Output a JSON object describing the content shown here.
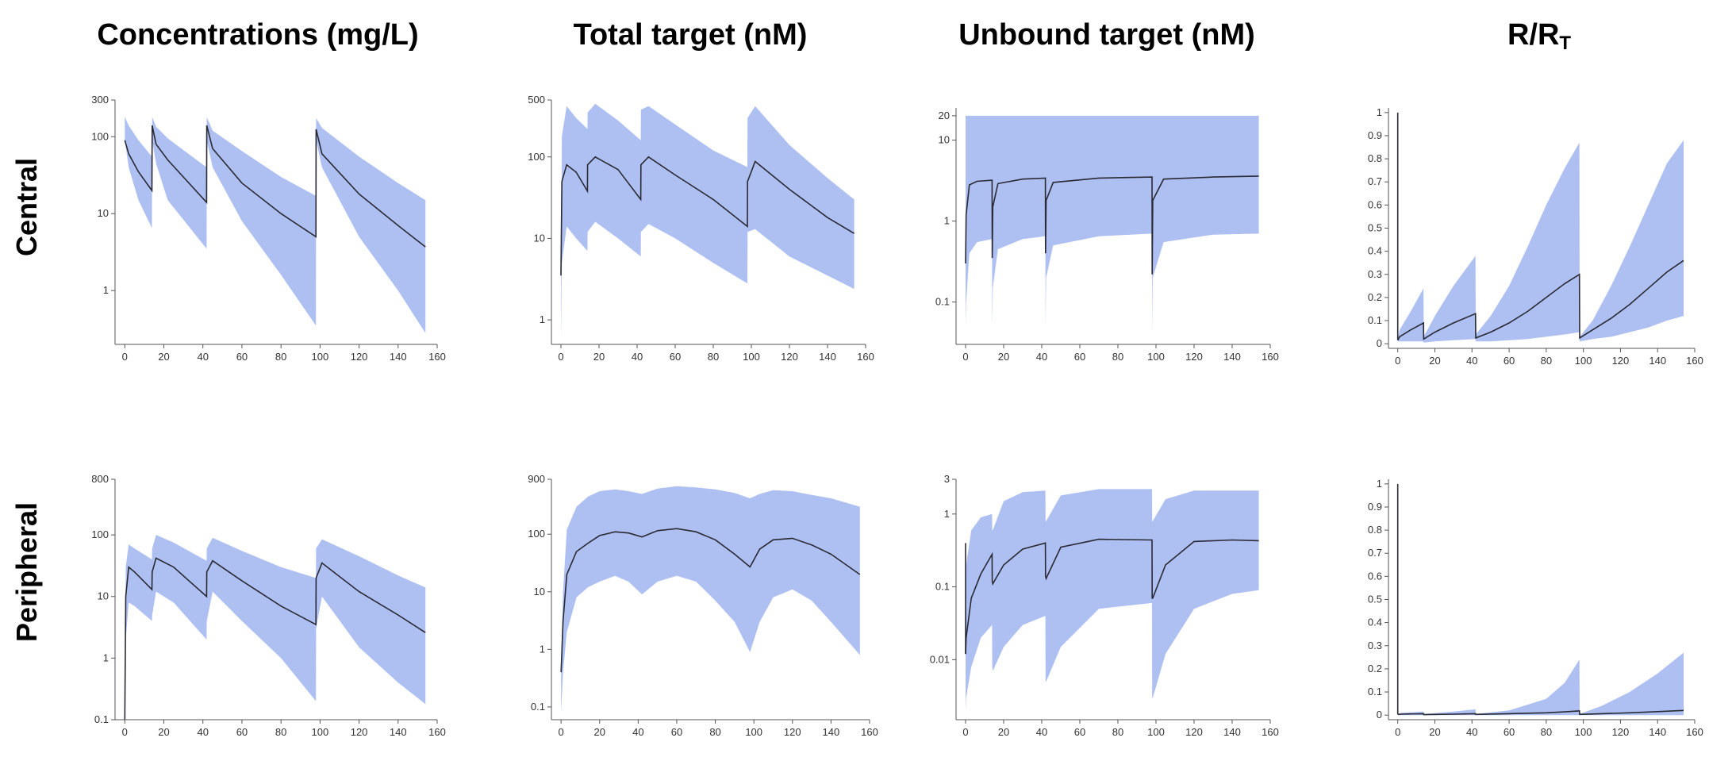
{
  "columns": [
    {
      "title": "Concentrations (mg/L)"
    },
    {
      "title": "Total target (nM)"
    },
    {
      "title": "Unbound target (nM)"
    },
    {
      "title": "R/R",
      "title_sub": "T"
    }
  ],
  "rows": [
    {
      "label": "Central"
    },
    {
      "label": "Peripheral"
    }
  ],
  "colors": {
    "band": "#aebff2",
    "line": "#2a2a35",
    "axis": "#555555",
    "tick": "#333333"
  },
  "chart_data": [
    {
      "id": "central-concentrations",
      "type": "area",
      "row": "Central",
      "column": "Concentrations (mg/L)",
      "yscale": "log",
      "ylim": [
        0.2,
        300
      ],
      "xlim": [
        -5,
        160
      ],
      "xticks": [
        "0",
        "20",
        "40",
        "60",
        "80",
        "100",
        "120",
        "140",
        "160"
      ],
      "yticks": [
        {
          "v": 1,
          "label": "1"
        },
        {
          "v": 10,
          "label": "10"
        },
        {
          "v": 100,
          "label": "100"
        },
        {
          "v": 300,
          "label": "300"
        }
      ],
      "x": [
        0,
        2,
        7,
        13.9,
        14,
        16,
        22,
        41.9,
        42,
        45,
        60,
        80,
        97.9,
        98,
        101,
        120,
        140,
        154
      ],
      "lower": [
        90,
        40,
        15,
        6.5,
        90,
        45,
        15,
        3.5,
        90,
        40,
        8,
        1.6,
        0.35,
        90,
        40,
        5,
        1,
        0.28
      ],
      "upper": [
        180,
        140,
        90,
        55,
        180,
        135,
        95,
        40,
        180,
        120,
        65,
        30,
        17,
        175,
        130,
        55,
        25,
        15
      ],
      "median": [
        90,
        60,
        35,
        20,
        140,
        80,
        50,
        14,
        140,
        70,
        25,
        10,
        5,
        125,
        60,
        18,
        7,
        3.7
      ]
    },
    {
      "id": "central-total-target",
      "type": "area",
      "row": "Central",
      "column": "Total target (nM)",
      "yscale": "log",
      "ylim": [
        0.5,
        500
      ],
      "xlim": [
        -5,
        160
      ],
      "xticks": [
        "0",
        "20",
        "40",
        "60",
        "80",
        "100",
        "120",
        "140",
        "160"
      ],
      "yticks": [
        {
          "v": 1,
          "label": "1"
        },
        {
          "v": 10,
          "label": "10"
        },
        {
          "v": 100,
          "label": "100"
        },
        {
          "v": 500,
          "label": "500"
        }
      ],
      "x": [
        0,
        0.5,
        3,
        8,
        13.9,
        14,
        18,
        30,
        41.9,
        42,
        46,
        60,
        80,
        97.9,
        98,
        102,
        120,
        140,
        154
      ],
      "lower": [
        0.6,
        5,
        14,
        10,
        7,
        12,
        16,
        10,
        6,
        12,
        15,
        10,
        5,
        2.8,
        12,
        13,
        6,
        3.5,
        2.4
      ],
      "upper": [
        1.5,
        180,
        420,
        300,
        220,
        350,
        450,
        280,
        160,
        380,
        420,
        250,
        120,
        75,
        300,
        420,
        140,
        55,
        30
      ],
      "median": [
        3.5,
        50,
        80,
        65,
        38,
        80,
        100,
        70,
        30,
        80,
        100,
        60,
        30,
        14,
        50,
        88,
        40,
        18,
        11.5
      ]
    },
    {
      "id": "central-unbound-target",
      "type": "area",
      "row": "Central",
      "column": "Unbound target (nM)",
      "yscale": "log",
      "ylim": [
        0.03,
        25
      ],
      "xlim": [
        -5,
        160
      ],
      "xticks": [
        "0",
        "20",
        "40",
        "60",
        "80",
        "100",
        "120",
        "140",
        "160"
      ],
      "yticks": [
        {
          "v": 0.1,
          "label": "0.1"
        },
        {
          "v": 1,
          "label": "1"
        },
        {
          "v": 10,
          "label": "10"
        },
        {
          "v": 20,
          "label": "20"
        }
      ],
      "x": [
        0,
        0.3,
        2,
        6,
        13.9,
        14,
        14.3,
        17,
        30,
        41.9,
        42,
        42.3,
        46,
        70,
        97.9,
        98,
        98.3,
        104,
        130,
        154
      ],
      "lower": [
        0.05,
        0.1,
        0.4,
        0.55,
        0.6,
        0.05,
        0.15,
        0.45,
        0.6,
        0.65,
        0.05,
        0.2,
        0.5,
        0.65,
        0.7,
        0.04,
        0.2,
        0.55,
        0.68,
        0.7
      ],
      "upper": [
        20,
        20,
        20,
        20,
        20,
        20,
        20,
        20,
        20,
        20,
        20,
        20,
        20,
        20,
        20,
        20,
        20,
        20,
        20,
        20
      ],
      "median": [
        0.3,
        1.2,
        2.8,
        3.1,
        3.2,
        0.35,
        1.5,
        2.9,
        3.3,
        3.4,
        0.4,
        1.8,
        3.0,
        3.4,
        3.5,
        0.22,
        1.8,
        3.3,
        3.5,
        3.6
      ]
    },
    {
      "id": "central-r-rt",
      "type": "area",
      "row": "Central",
      "column": "R/RT",
      "yscale": "linear",
      "ylim": [
        -0.02,
        1.02
      ],
      "xlim": [
        -5,
        160
      ],
      "xticks": [
        "0",
        "20",
        "40",
        "60",
        "80",
        "100",
        "120",
        "140",
        "160"
      ],
      "yticks": [
        {
          "v": 0,
          "label": "0"
        },
        {
          "v": 0.1,
          "label": "0.1"
        },
        {
          "v": 0.2,
          "label": "0.2"
        },
        {
          "v": 0.3,
          "label": "0.3"
        },
        {
          "v": 0.4,
          "label": "0.4"
        },
        {
          "v": 0.5,
          "label": "0.5"
        },
        {
          "v": 0.6,
          "label": "0.6"
        },
        {
          "v": 0.7,
          "label": "0.7"
        },
        {
          "v": 0.8,
          "label": "0.8"
        },
        {
          "v": 0.9,
          "label": "0.9"
        },
        {
          "v": 1,
          "label": "1"
        }
      ],
      "x": [
        0,
        1,
        7,
        13.9,
        14,
        20,
        30,
        41.9,
        42,
        50,
        60,
        70,
        80,
        90,
        97.9,
        98,
        105,
        115,
        125,
        135,
        145,
        154
      ],
      "lower": [
        0.01,
        0.01,
        0.01,
        0.01,
        0.005,
        0.01,
        0.015,
        0.02,
        0.01,
        0.01,
        0.015,
        0.02,
        0.03,
        0.04,
        0.05,
        0.01,
        0.02,
        0.03,
        0.05,
        0.07,
        0.1,
        0.12
      ],
      "upper": [
        0.02,
        0.06,
        0.14,
        0.24,
        0.03,
        0.12,
        0.25,
        0.38,
        0.04,
        0.12,
        0.25,
        0.42,
        0.6,
        0.76,
        0.87,
        0.03,
        0.1,
        0.25,
        0.42,
        0.6,
        0.78,
        0.88
      ],
      "median": [
        0.015,
        0.03,
        0.06,
        0.09,
        0.02,
        0.05,
        0.09,
        0.13,
        0.025,
        0.05,
        0.09,
        0.14,
        0.2,
        0.26,
        0.3,
        0.025,
        0.06,
        0.11,
        0.17,
        0.24,
        0.31,
        0.36
      ],
      "spike": {
        "x": 0,
        "y": 1
      }
    },
    {
      "id": "peripheral-concentrations",
      "type": "area",
      "row": "Peripheral",
      "column": "Concentrations (mg/L)",
      "yscale": "log",
      "ylim": [
        0.1,
        800
      ],
      "xlim": [
        -5,
        160
      ],
      "xticks": [
        "0",
        "20",
        "40",
        "60",
        "80",
        "100",
        "120",
        "140",
        "160"
      ],
      "yticks": [
        {
          "v": 0.1,
          "label": "0.1"
        },
        {
          "v": 1,
          "label": "1"
        },
        {
          "v": 10,
          "label": "10"
        },
        {
          "v": 100,
          "label": "100"
        },
        {
          "v": 800,
          "label": "800"
        }
      ],
      "x": [
        0,
        0.5,
        2,
        5,
        13.9,
        14,
        16,
        25,
        41.9,
        42,
        45,
        60,
        80,
        97.9,
        98,
        101,
        120,
        140,
        154
      ],
      "lower": [
        0.1,
        2,
        8,
        7,
        4,
        5,
        12,
        8,
        2,
        4,
        12,
        4,
        1,
        0.2,
        3,
        10,
        1.5,
        0.4,
        0.18
      ],
      "upper": [
        0.1,
        30,
        70,
        60,
        40,
        60,
        100,
        75,
        38,
        60,
        90,
        55,
        30,
        20,
        60,
        85,
        45,
        22,
        14
      ],
      "median": [
        0.1,
        10,
        30,
        25,
        13,
        25,
        42,
        30,
        10,
        25,
        38,
        18,
        7,
        3.5,
        20,
        35,
        12,
        5,
        2.6
      ]
    },
    {
      "id": "peripheral-total-target",
      "type": "area",
      "row": "Peripheral",
      "column": "Total target (nM)",
      "yscale": "log",
      "ylim": [
        0.06,
        900
      ],
      "xlim": [
        -5,
        160
      ],
      "xticks": [
        "0",
        "20",
        "40",
        "60",
        "80",
        "100",
        "120",
        "140",
        "160"
      ],
      "yticks": [
        {
          "v": 0.1,
          "label": "0.1"
        },
        {
          "v": 1,
          "label": "1"
        },
        {
          "v": 10,
          "label": "10"
        },
        {
          "v": 100,
          "label": "100"
        },
        {
          "v": 900,
          "label": "900"
        }
      ],
      "x": [
        0,
        1,
        3,
        8,
        14,
        20,
        28,
        35,
        42,
        50,
        60,
        70,
        80,
        90,
        98,
        103,
        110,
        120,
        130,
        140,
        155
      ],
      "lower": [
        0.08,
        0.4,
        2,
        8,
        12,
        15,
        19,
        15,
        9,
        15,
        19,
        15,
        7,
        3,
        0.9,
        3,
        8,
        11,
        7,
        3,
        0.8
      ],
      "upper": [
        0.5,
        10,
        120,
        300,
        450,
        560,
        600,
        560,
        500,
        620,
        680,
        650,
        600,
        520,
        420,
        500,
        580,
        560,
        480,
        420,
        300
      ],
      "median": [
        0.4,
        3,
        20,
        50,
        70,
        95,
        110,
        105,
        90,
        115,
        125,
        110,
        80,
        45,
        27,
        55,
        80,
        85,
        65,
        45,
        20
      ]
    },
    {
      "id": "peripheral-unbound-target",
      "type": "area",
      "row": "Peripheral",
      "column": "Unbound target (nM)",
      "yscale": "log",
      "ylim": [
        0.0015,
        3
      ],
      "xlim": [
        -5,
        160
      ],
      "xticks": [
        "0",
        "20",
        "40",
        "60",
        "80",
        "100",
        "120",
        "140",
        "160"
      ],
      "yticks": [
        {
          "v": 0.01,
          "label": "0.01"
        },
        {
          "v": 0.1,
          "label": "0.1"
        },
        {
          "v": 1,
          "label": "1"
        },
        {
          "v": 3,
          "label": "3"
        }
      ],
      "x": [
        0,
        0.3,
        3,
        8,
        13.9,
        14,
        14.3,
        20,
        30,
        41.9,
        42,
        42.3,
        50,
        70,
        97.9,
        98,
        98.3,
        105,
        120,
        140,
        154
      ],
      "lower": [
        0.002,
        0.003,
        0.008,
        0.02,
        0.03,
        0.008,
        0.007,
        0.015,
        0.03,
        0.04,
        0.005,
        0.005,
        0.015,
        0.05,
        0.06,
        0.003,
        0.003,
        0.012,
        0.05,
        0.08,
        0.09
      ],
      "upper": [
        0.05,
        0.2,
        0.6,
        0.9,
        1.0,
        0.6,
        0.6,
        1.5,
        2.0,
        2.1,
        0.8,
        0.8,
        1.8,
        2.2,
        2.2,
        0.8,
        0.8,
        1.6,
        2.1,
        2.1,
        2.1
      ],
      "median": [
        0.012,
        0.02,
        0.07,
        0.15,
        0.28,
        0.12,
        0.11,
        0.2,
        0.33,
        0.4,
        0.14,
        0.13,
        0.35,
        0.45,
        0.44,
        0.07,
        0.07,
        0.2,
        0.42,
        0.44,
        0.43
      ],
      "spike": {
        "x": 0,
        "y": 0.4
      }
    },
    {
      "id": "peripheral-r-rt",
      "type": "area",
      "row": "Peripheral",
      "column": "R/RT",
      "yscale": "linear",
      "ylim": [
        -0.02,
        1.02
      ],
      "xlim": [
        -5,
        160
      ],
      "xticks": [
        "0",
        "20",
        "40",
        "60",
        "80",
        "100",
        "120",
        "140",
        "160"
      ],
      "yticks": [
        {
          "v": 0,
          "label": "0"
        },
        {
          "v": 0.1,
          "label": "0.1"
        },
        {
          "v": 0.2,
          "label": "0.2"
        },
        {
          "v": 0.3,
          "label": "0.3"
        },
        {
          "v": 0.4,
          "label": "0.4"
        },
        {
          "v": 0.5,
          "label": "0.5"
        },
        {
          "v": 0.6,
          "label": "0.6"
        },
        {
          "v": 0.7,
          "label": "0.7"
        },
        {
          "v": 0.8,
          "label": "0.8"
        },
        {
          "v": 0.9,
          "label": "0.9"
        },
        {
          "v": 1,
          "label": "1"
        }
      ],
      "x": [
        0,
        2,
        13.9,
        14,
        30,
        41.9,
        42,
        60,
        80,
        90,
        97.9,
        98,
        110,
        125,
        140,
        154
      ],
      "lower": [
        0,
        0,
        0,
        0,
        0,
        0,
        0,
        0,
        0,
        0,
        0,
        0,
        0,
        0,
        0,
        0
      ],
      "upper": [
        0.005,
        0.01,
        0.015,
        0.005,
        0.015,
        0.025,
        0.005,
        0.02,
        0.07,
        0.14,
        0.24,
        0.005,
        0.04,
        0.1,
        0.18,
        0.27
      ],
      "median": [
        0.003,
        0.004,
        0.006,
        0.002,
        0.004,
        0.006,
        0.003,
        0.006,
        0.01,
        0.014,
        0.018,
        0.003,
        0.006,
        0.01,
        0.015,
        0.02
      ],
      "spike": {
        "x": 0,
        "y": 1
      }
    }
  ]
}
